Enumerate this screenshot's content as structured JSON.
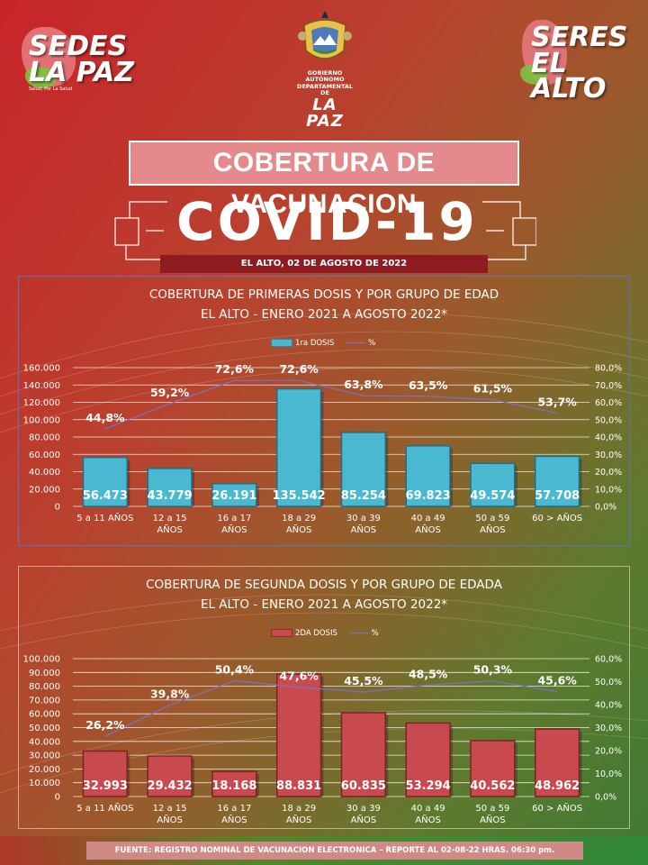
{
  "header": {
    "logo_left_line1": "SEDES",
    "logo_left_line2": "LA PAZ",
    "logo_left_tagline": "Salud, Por La Salud",
    "logo_right_line1": "SERES",
    "logo_right_line2": "EL ALTO",
    "crest_text": "GOBIERNO AUTÓNOMO DEPARTAMENTAL DE",
    "crest_name": "LA PAZ"
  },
  "banner": {
    "title": "COBERTURA DE VACUNACION",
    "covid": "COVID-19",
    "date": "EL ALTO, 02 DE AGOSTO DE 2022"
  },
  "colors": {
    "bar1": "#4ab8d0",
    "bar2": "#c84a4e",
    "pct_line": "#7b72c8",
    "grid": "#ffffff"
  },
  "chart_data": [
    {
      "type": "bar",
      "title_line1": "COBERTURA DE PRIMERAS DOSIS Y POR GRUPO DE EDAD",
      "title_line2": "EL ALTO - ENERO 2021 A AGOSTO 2022*",
      "legend_bar": "1ra DOSIS",
      "legend_line": "%",
      "categories": [
        [
          "5 a 11 AÑOS"
        ],
        [
          "12 a 15",
          "AÑOS"
        ],
        [
          "16 a 17",
          "AÑOS"
        ],
        [
          "18 a 29",
          "AÑOS"
        ],
        [
          "30 a 39",
          "AÑOS"
        ],
        [
          "40 a 49",
          "AÑOS"
        ],
        [
          "50 a 59",
          "AÑOS"
        ],
        [
          "60 > AÑOS"
        ]
      ],
      "values": [
        56473,
        43779,
        26191,
        135542,
        85254,
        69823,
        49574,
        57708
      ],
      "value_labels": [
        "56.473",
        "43.779",
        "26.191",
        "135.542",
        "85.254",
        "69.823",
        "49.574",
        "57.708"
      ],
      "pct": [
        44.8,
        59.2,
        72.6,
        72.6,
        63.8,
        63.5,
        61.5,
        53.7
      ],
      "pct_labels": [
        "44,8%",
        "59,2%",
        "72,6%",
        "72,6%",
        "63,8%",
        "63,5%",
        "61,5%",
        "53,7%"
      ],
      "ylim": [
        0,
        160000
      ],
      "yticks": [
        "0",
        "20.000",
        "40.000",
        "60.000",
        "80.000",
        "100.000",
        "120.000",
        "140.000",
        "160.000"
      ],
      "y2lim": [
        0,
        80
      ],
      "y2ticks": [
        "0,0%",
        "10,0%",
        "20,0%",
        "30,0%",
        "40,0%",
        "50,0%",
        "60,0%",
        "70,0%",
        "80,0%"
      ]
    },
    {
      "type": "bar",
      "title_line1": "COBERTURA DE SEGUNDA DOSIS Y POR GRUPO DE EDADA",
      "title_line2": "EL ALTO - ENERO 2021 A AGOSTO 2022*",
      "legend_bar": "2DA DOSIS",
      "legend_line": "%",
      "categories": [
        [
          "5 a 11 AÑOS"
        ],
        [
          "12 a 15",
          "AÑOS"
        ],
        [
          "16 a 17",
          "AÑOS"
        ],
        [
          "18 a 29",
          "AÑOS"
        ],
        [
          "30 a 39",
          "AÑOS"
        ],
        [
          "40 a 49",
          "AÑOS"
        ],
        [
          "50 a 59",
          "AÑOS"
        ],
        [
          "60 > AÑOS"
        ]
      ],
      "values": [
        32993,
        29432,
        18168,
        88831,
        60835,
        53294,
        40562,
        48962
      ],
      "value_labels": [
        "32.993",
        "29.432",
        "18.168",
        "88.831",
        "60.835",
        "53.294",
        "40.562",
        "48.962"
      ],
      "pct": [
        26.2,
        39.8,
        50.4,
        47.6,
        45.5,
        48.5,
        50.3,
        45.6
      ],
      "pct_labels": [
        "26,2%",
        "39,8%",
        "50,4%",
        "47,6%",
        "45,5%",
        "48,5%",
        "50,3%",
        "45,6%"
      ],
      "ylim": [
        0,
        100000
      ],
      "yticks": [
        "0",
        "10.000",
        "20.000",
        "30.000",
        "40.000",
        "50.000",
        "60.000",
        "70.000",
        "80.000",
        "90.000",
        "100.000"
      ],
      "y2lim": [
        0,
        60
      ],
      "y2ticks": [
        "0,0%",
        "10,0%",
        "20,0%",
        "30,0%",
        "40,0%",
        "50,0%",
        "60,0%"
      ]
    }
  ],
  "footer": "FUENTE: REGISTRO NOMINAL DE VACUNACION ELECTRONICA – REPORTE AL 02-08-22 HRAS. 06:30 pm."
}
